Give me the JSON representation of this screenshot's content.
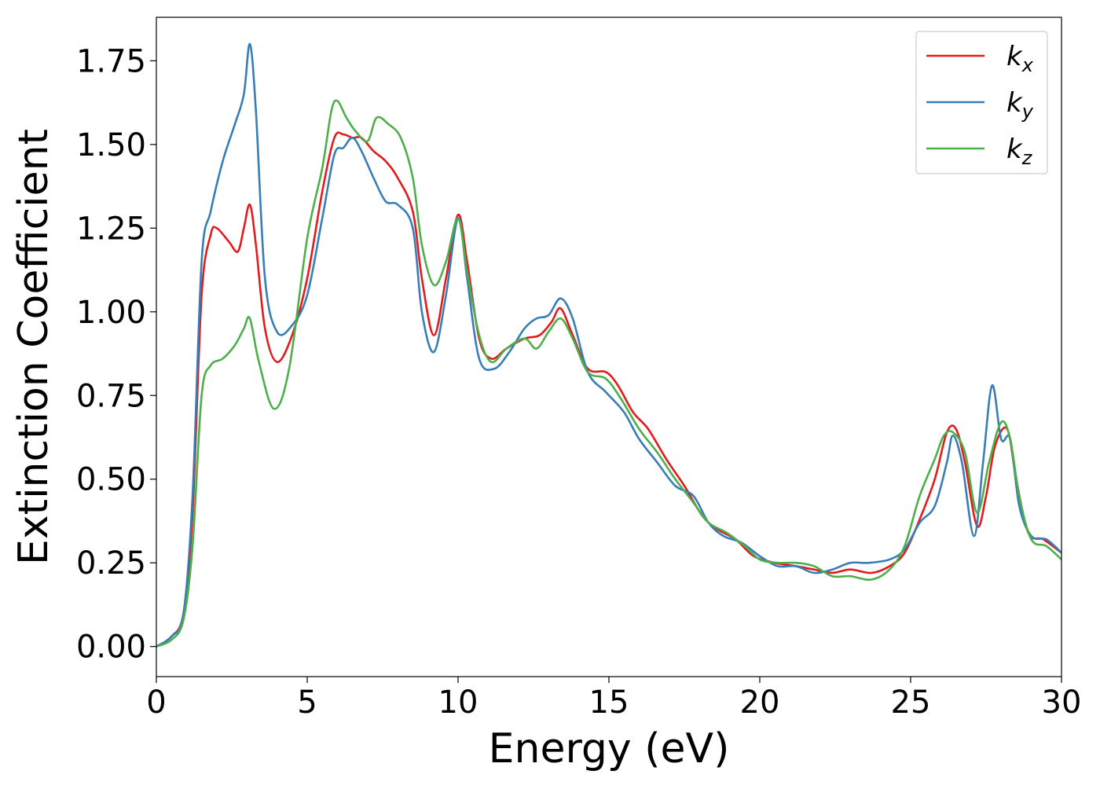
{
  "chart_data": {
    "type": "line",
    "title": "",
    "xlabel": "Energy (eV)",
    "ylabel": "Extinction Coefficient",
    "xlim": [
      0,
      30
    ],
    "ylim": [
      -0.09,
      1.88
    ],
    "xticks": [
      0,
      5,
      10,
      15,
      20,
      25,
      30
    ],
    "xtick_labels": [
      "0",
      "5",
      "10",
      "15",
      "20",
      "25",
      "30"
    ],
    "yticks": [
      0.0,
      0.25,
      0.5,
      0.75,
      1.0,
      1.25,
      1.5,
      1.75
    ],
    "ytick_labels": [
      "0.00",
      "0.25",
      "0.50",
      "0.75",
      "1.00",
      "1.25",
      "1.50",
      "1.75"
    ],
    "grid": false,
    "legend_position": "top-right",
    "series": [
      {
        "name": "k_x",
        "legend_base": "k",
        "legend_sub": "x",
        "color": "#e41a1c",
        "points": [
          [
            0,
            0
          ],
          [
            0.5,
            0.03
          ],
          [
            0.9,
            0.1
          ],
          [
            1.2,
            0.4
          ],
          [
            1.5,
            1.05
          ],
          [
            1.8,
            1.23
          ],
          [
            2.0,
            1.25
          ],
          [
            2.4,
            1.21
          ],
          [
            2.7,
            1.18
          ],
          [
            2.9,
            1.25
          ],
          [
            3.1,
            1.32
          ],
          [
            3.3,
            1.2
          ],
          [
            3.6,
            0.95
          ],
          [
            4.0,
            0.85
          ],
          [
            4.5,
            0.93
          ],
          [
            5.0,
            1.1
          ],
          [
            5.5,
            1.36
          ],
          [
            5.9,
            1.52
          ],
          [
            6.2,
            1.53
          ],
          [
            6.5,
            1.52
          ],
          [
            6.8,
            1.52
          ],
          [
            7.2,
            1.48
          ],
          [
            7.6,
            1.45
          ],
          [
            8.0,
            1.4
          ],
          [
            8.5,
            1.3
          ],
          [
            8.8,
            1.1
          ],
          [
            9.2,
            0.93
          ],
          [
            9.6,
            1.1
          ],
          [
            10.0,
            1.29
          ],
          [
            10.3,
            1.15
          ],
          [
            10.7,
            0.92
          ],
          [
            11.1,
            0.86
          ],
          [
            11.6,
            0.89
          ],
          [
            12.2,
            0.92
          ],
          [
            12.7,
            0.93
          ],
          [
            13.1,
            0.97
          ],
          [
            13.4,
            1.01
          ],
          [
            13.8,
            0.93
          ],
          [
            14.3,
            0.83
          ],
          [
            14.9,
            0.82
          ],
          [
            15.3,
            0.78
          ],
          [
            15.8,
            0.7
          ],
          [
            16.3,
            0.65
          ],
          [
            16.9,
            0.56
          ],
          [
            17.5,
            0.48
          ],
          [
            18.1,
            0.39
          ],
          [
            18.6,
            0.35
          ],
          [
            19.2,
            0.32
          ],
          [
            19.8,
            0.27
          ],
          [
            20.5,
            0.25
          ],
          [
            21.2,
            0.24
          ],
          [
            21.8,
            0.23
          ],
          [
            22.4,
            0.22
          ],
          [
            23.0,
            0.23
          ],
          [
            23.7,
            0.22
          ],
          [
            24.3,
            0.24
          ],
          [
            24.8,
            0.28
          ],
          [
            25.3,
            0.38
          ],
          [
            25.8,
            0.5
          ],
          [
            26.2,
            0.64
          ],
          [
            26.5,
            0.65
          ],
          [
            26.8,
            0.55
          ],
          [
            27.2,
            0.36
          ],
          [
            27.5,
            0.45
          ],
          [
            27.8,
            0.6
          ],
          [
            28.2,
            0.65
          ],
          [
            28.5,
            0.5
          ],
          [
            28.9,
            0.34
          ],
          [
            29.4,
            0.32
          ],
          [
            30.0,
            0.28
          ]
        ]
      },
      {
        "name": "k_y",
        "legend_base": "k",
        "legend_sub": "y",
        "color": "#377eb8",
        "points": [
          [
            0,
            0
          ],
          [
            0.5,
            0.03
          ],
          [
            0.9,
            0.1
          ],
          [
            1.2,
            0.45
          ],
          [
            1.5,
            1.15
          ],
          [
            1.8,
            1.3
          ],
          [
            2.2,
            1.45
          ],
          [
            2.6,
            1.56
          ],
          [
            2.9,
            1.65
          ],
          [
            3.1,
            1.8
          ],
          [
            3.3,
            1.6
          ],
          [
            3.6,
            1.1
          ],
          [
            4.0,
            0.94
          ],
          [
            4.5,
            0.96
          ],
          [
            5.0,
            1.05
          ],
          [
            5.5,
            1.28
          ],
          [
            5.9,
            1.47
          ],
          [
            6.2,
            1.49
          ],
          [
            6.5,
            1.52
          ],
          [
            6.8,
            1.48
          ],
          [
            7.2,
            1.4
          ],
          [
            7.6,
            1.33
          ],
          [
            8.0,
            1.32
          ],
          [
            8.5,
            1.25
          ],
          [
            8.8,
            1.0
          ],
          [
            9.2,
            0.88
          ],
          [
            9.6,
            1.05
          ],
          [
            10.0,
            1.28
          ],
          [
            10.3,
            1.1
          ],
          [
            10.7,
            0.86
          ],
          [
            11.2,
            0.83
          ],
          [
            11.7,
            0.88
          ],
          [
            12.2,
            0.95
          ],
          [
            12.6,
            0.98
          ],
          [
            13.0,
            0.99
          ],
          [
            13.4,
            1.04
          ],
          [
            13.8,
            0.98
          ],
          [
            14.3,
            0.82
          ],
          [
            14.9,
            0.76
          ],
          [
            15.5,
            0.7
          ],
          [
            16.0,
            0.62
          ],
          [
            16.6,
            0.55
          ],
          [
            17.2,
            0.48
          ],
          [
            17.8,
            0.45
          ],
          [
            18.3,
            0.37
          ],
          [
            18.8,
            0.33
          ],
          [
            19.4,
            0.31
          ],
          [
            20.0,
            0.27
          ],
          [
            20.6,
            0.24
          ],
          [
            21.2,
            0.24
          ],
          [
            21.8,
            0.22
          ],
          [
            22.4,
            0.23
          ],
          [
            23.0,
            0.25
          ],
          [
            23.6,
            0.25
          ],
          [
            24.3,
            0.26
          ],
          [
            24.8,
            0.29
          ],
          [
            25.3,
            0.37
          ],
          [
            25.8,
            0.42
          ],
          [
            26.2,
            0.55
          ],
          [
            26.4,
            0.63
          ],
          [
            26.7,
            0.55
          ],
          [
            27.1,
            0.33
          ],
          [
            27.4,
            0.55
          ],
          [
            27.7,
            0.78
          ],
          [
            28.0,
            0.62
          ],
          [
            28.3,
            0.62
          ],
          [
            28.6,
            0.42
          ],
          [
            29.0,
            0.33
          ],
          [
            29.5,
            0.32
          ],
          [
            30.0,
            0.28
          ]
        ]
      },
      {
        "name": "k_z",
        "legend_base": "k",
        "legend_sub": "z",
        "color": "#4daf4a",
        "points": [
          [
            0,
            0
          ],
          [
            0.5,
            0.02
          ],
          [
            0.9,
            0.08
          ],
          [
            1.2,
            0.3
          ],
          [
            1.5,
            0.75
          ],
          [
            1.8,
            0.84
          ],
          [
            2.2,
            0.86
          ],
          [
            2.6,
            0.9
          ],
          [
            2.9,
            0.95
          ],
          [
            3.1,
            0.98
          ],
          [
            3.4,
            0.85
          ],
          [
            3.9,
            0.71
          ],
          [
            4.4,
            0.83
          ],
          [
            5.0,
            1.22
          ],
          [
            5.5,
            1.43
          ],
          [
            5.8,
            1.6
          ],
          [
            6.0,
            1.63
          ],
          [
            6.3,
            1.58
          ],
          [
            6.6,
            1.54
          ],
          [
            7.0,
            1.51
          ],
          [
            7.3,
            1.58
          ],
          [
            7.7,
            1.56
          ],
          [
            8.1,
            1.52
          ],
          [
            8.5,
            1.4
          ],
          [
            8.8,
            1.2
          ],
          [
            9.2,
            1.08
          ],
          [
            9.6,
            1.15
          ],
          [
            10.0,
            1.28
          ],
          [
            10.3,
            1.12
          ],
          [
            10.7,
            0.93
          ],
          [
            11.1,
            0.85
          ],
          [
            11.6,
            0.89
          ],
          [
            12.2,
            0.92
          ],
          [
            12.6,
            0.89
          ],
          [
            13.0,
            0.94
          ],
          [
            13.4,
            0.98
          ],
          [
            13.8,
            0.92
          ],
          [
            14.3,
            0.82
          ],
          [
            14.9,
            0.8
          ],
          [
            15.4,
            0.74
          ],
          [
            16.0,
            0.65
          ],
          [
            16.6,
            0.58
          ],
          [
            17.2,
            0.5
          ],
          [
            17.8,
            0.43
          ],
          [
            18.3,
            0.37
          ],
          [
            18.9,
            0.34
          ],
          [
            19.5,
            0.3
          ],
          [
            20.0,
            0.26
          ],
          [
            20.6,
            0.25
          ],
          [
            21.2,
            0.25
          ],
          [
            21.8,
            0.24
          ],
          [
            22.4,
            0.21
          ],
          [
            23.0,
            0.21
          ],
          [
            23.7,
            0.2
          ],
          [
            24.3,
            0.23
          ],
          [
            24.8,
            0.3
          ],
          [
            25.3,
            0.45
          ],
          [
            25.8,
            0.56
          ],
          [
            26.1,
            0.63
          ],
          [
            26.4,
            0.64
          ],
          [
            26.8,
            0.58
          ],
          [
            27.2,
            0.4
          ],
          [
            27.6,
            0.55
          ],
          [
            28.0,
            0.67
          ],
          [
            28.3,
            0.62
          ],
          [
            28.6,
            0.45
          ],
          [
            29.0,
            0.32
          ],
          [
            29.5,
            0.3
          ],
          [
            30.0,
            0.26
          ]
        ]
      }
    ]
  }
}
